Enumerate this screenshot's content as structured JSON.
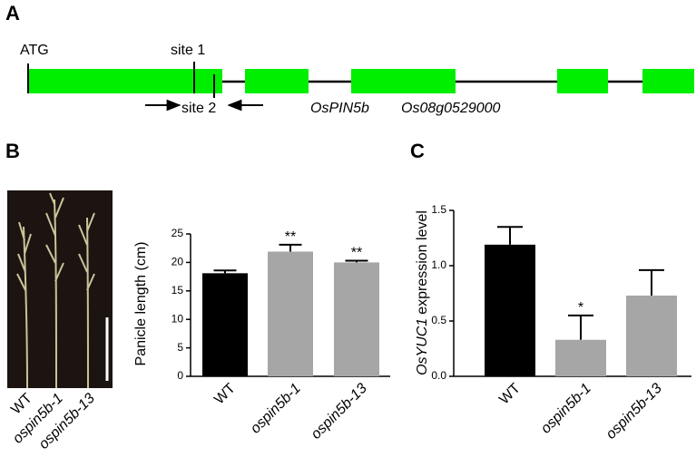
{
  "panel_labels": [
    "A",
    "B",
    "C"
  ],
  "gene_diagram": {
    "start": "ATG",
    "site1": "site 1",
    "site2": "site 2",
    "gene": "OsPIN5b",
    "locus": "Os08g0529000"
  },
  "photo": {
    "labels": [
      "WT",
      "ospin5b-1",
      "ospin5b-13"
    ]
  },
  "chart_data": [
    {
      "type": "bar",
      "ylabel": "Panicle length (cm)",
      "categories": [
        "WT",
        "ospin5b-1",
        "ospin5b-13"
      ],
      "values": [
        18.1,
        21.9,
        20.0
      ],
      "errors": [
        0.5,
        1.2,
        0.3
      ],
      "colors": [
        "#000000",
        "#a6a6a6",
        "#a6a6a6"
      ],
      "annotations": [
        null,
        "**",
        "**"
      ],
      "ylim": [
        0,
        25
      ],
      "yticks": [
        0,
        5,
        10,
        15,
        20,
        25
      ]
    },
    {
      "type": "bar",
      "ylabel_gene": "OsYUC1",
      "ylabel": "expression level",
      "categories": [
        "WT",
        "ospin5b-1",
        "ospin5b-13"
      ],
      "values": [
        1.19,
        0.33,
        0.73
      ],
      "errors": [
        0.16,
        0.22,
        0.23
      ],
      "colors": [
        "#000000",
        "#a6a6a6",
        "#a6a6a6"
      ],
      "annotations": [
        null,
        "*",
        null
      ],
      "ylim": [
        0,
        1.5
      ],
      "yticks": [
        {
          "value": 0,
          "label": "0.0"
        },
        {
          "value": 0.5,
          "label": "0.5"
        },
        {
          "value": 1,
          "label": "1.0"
        },
        {
          "value": 1.5,
          "label": "1.5"
        }
      ]
    }
  ]
}
